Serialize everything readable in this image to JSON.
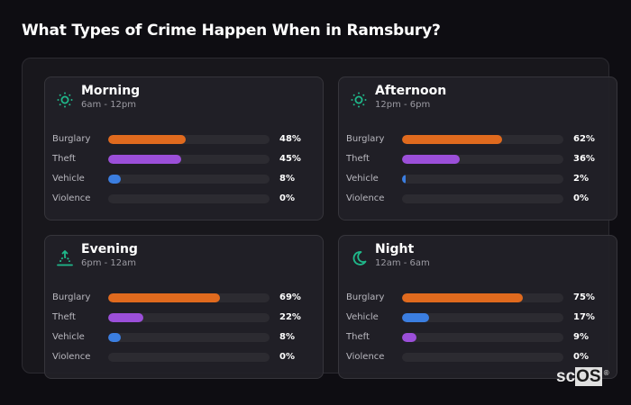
{
  "page": {
    "title": "What Types of Crime Happen When in Ramsbury?"
  },
  "colors": {
    "burglary": "#e06a1e",
    "theft": "#9b4fd9",
    "vehicle": "#3b7ee0",
    "violence": "#d9534f",
    "icon_accent": "#1fb88a",
    "track": "#2c2b31"
  },
  "cards": [
    {
      "name": "Morning",
      "range": "6am - 12pm",
      "icon": "sun-icon",
      "rows": [
        {
          "label": "Burglary",
          "value": 48,
          "pct": "48%",
          "color": "#e06a1e"
        },
        {
          "label": "Theft",
          "value": 45,
          "pct": "45%",
          "color": "#9b4fd9"
        },
        {
          "label": "Vehicle",
          "value": 8,
          "pct": "8%",
          "color": "#3b7ee0"
        },
        {
          "label": "Violence",
          "value": 0,
          "pct": "0%",
          "color": "#d9534f"
        }
      ]
    },
    {
      "name": "Afternoon",
      "range": "12pm - 6pm",
      "icon": "sun-icon",
      "rows": [
        {
          "label": "Burglary",
          "value": 62,
          "pct": "62%",
          "color": "#e06a1e"
        },
        {
          "label": "Theft",
          "value": 36,
          "pct": "36%",
          "color": "#9b4fd9"
        },
        {
          "label": "Vehicle",
          "value": 2,
          "pct": "2%",
          "color": "#3b7ee0"
        },
        {
          "label": "Violence",
          "value": 0,
          "pct": "0%",
          "color": "#d9534f"
        }
      ]
    },
    {
      "name": "Evening",
      "range": "6pm - 12am",
      "icon": "sunset-icon",
      "rows": [
        {
          "label": "Burglary",
          "value": 69,
          "pct": "69%",
          "color": "#e06a1e"
        },
        {
          "label": "Theft",
          "value": 22,
          "pct": "22%",
          "color": "#9b4fd9"
        },
        {
          "label": "Vehicle",
          "value": 8,
          "pct": "8%",
          "color": "#3b7ee0"
        },
        {
          "label": "Violence",
          "value": 0,
          "pct": "0%",
          "color": "#d9534f"
        }
      ]
    },
    {
      "name": "Night",
      "range": "12am - 6am",
      "icon": "moon-icon",
      "rows": [
        {
          "label": "Burglary",
          "value": 75,
          "pct": "75%",
          "color": "#e06a1e"
        },
        {
          "label": "Vehicle",
          "value": 17,
          "pct": "17%",
          "color": "#3b7ee0"
        },
        {
          "label": "Theft",
          "value": 9,
          "pct": "9%",
          "color": "#9b4fd9"
        },
        {
          "label": "Violence",
          "value": 0,
          "pct": "0%",
          "color": "#d9534f"
        }
      ]
    }
  ],
  "logo": {
    "sc": "sc",
    "os": "OS",
    "reg": "®"
  },
  "chart_data": {
    "type": "bar",
    "orientation": "horizontal",
    "title": "What Types of Crime Happen When in Ramsbury?",
    "unit": "%",
    "xlim": [
      0,
      100
    ],
    "panels": [
      {
        "title": "Morning",
        "subtitle": "6am - 12pm",
        "categories": [
          "Burglary",
          "Theft",
          "Vehicle",
          "Violence"
        ],
        "values": [
          48,
          45,
          8,
          0
        ]
      },
      {
        "title": "Afternoon",
        "subtitle": "12pm - 6pm",
        "categories": [
          "Burglary",
          "Theft",
          "Vehicle",
          "Violence"
        ],
        "values": [
          62,
          36,
          2,
          0
        ]
      },
      {
        "title": "Evening",
        "subtitle": "6pm - 12am",
        "categories": [
          "Burglary",
          "Theft",
          "Vehicle",
          "Violence"
        ],
        "values": [
          69,
          22,
          8,
          0
        ]
      },
      {
        "title": "Night",
        "subtitle": "12am - 6am",
        "categories": [
          "Burglary",
          "Vehicle",
          "Theft",
          "Violence"
        ],
        "values": [
          75,
          17,
          9,
          0
        ]
      }
    ],
    "grid": false,
    "legend": null
  }
}
